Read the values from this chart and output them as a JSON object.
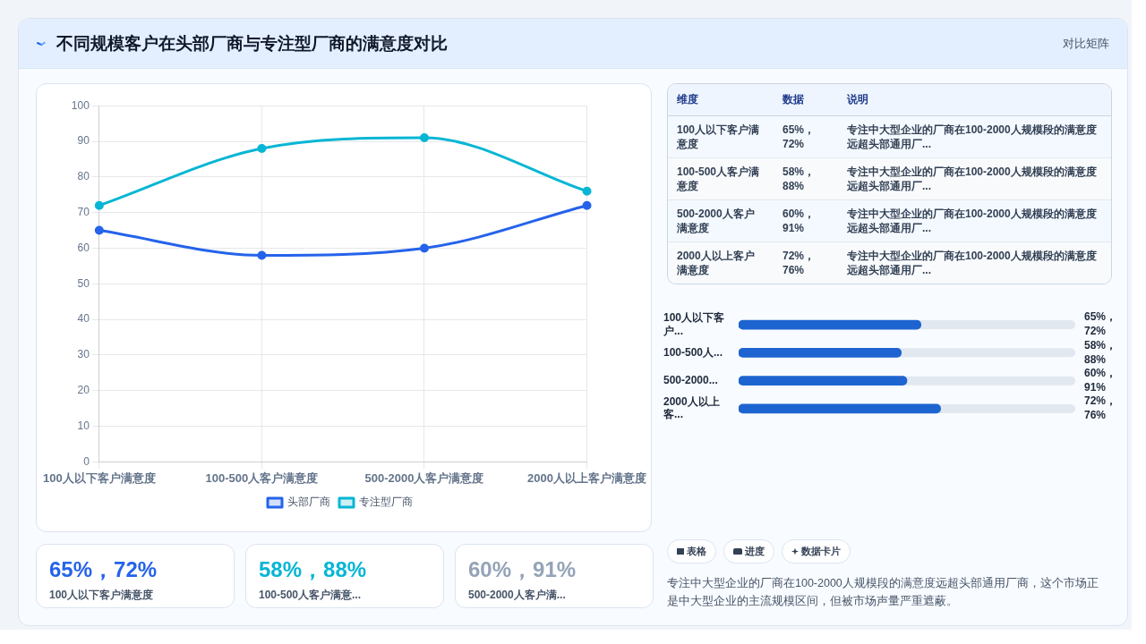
{
  "chart_data": [
    {
      "type": "other",
      "title": "不同规模客户在头部厂商与专注型厂商的满意度对比",
      "subtitle": "对比矩阵"
    },
    {
      "type": "line",
      "categories": [
        "100人以下客户满意度",
        "100-500人客户满意度",
        "500-2000人客户满意度",
        "2000人以上客户满意度"
      ],
      "series": [
        {
          "name": "头部厂商",
          "color": "#2563eb",
          "values": [
            65,
            58,
            60,
            72
          ]
        },
        {
          "name": "专注型厂商",
          "color": "#06b6d4",
          "values": [
            72,
            88,
            91,
            76
          ]
        }
      ],
      "ylim": [
        0,
        100
      ],
      "yticks": [
        0,
        10,
        20,
        30,
        40,
        50,
        60,
        70,
        80,
        90,
        100
      ],
      "grid": true,
      "legend": "bottom",
      "marker": "circle"
    },
    {
      "type": "other",
      "annotations": [
        "维度",
        "数据",
        "说明",
        "100人以下客户满意度",
        "65%，72%",
        "专注中大型企业的厂商在100-2000人规模段的满意度远超头部通用厂...",
        "100-500人客户满意度",
        "58%，88%",
        "专注中大型企业的厂商在100-2000人规模段的满意度远超头部通用厂...",
        "500-2000人客户满意度",
        "60%，91%",
        "专注中大型企业的厂商在100-2000人规模段的满意度远超头部通用厂...",
        "2000人以上客户满意度",
        "72%，76%",
        "专注中大型企业的厂商在100-2000人规模段的满意度远超头部通用厂..."
      ]
    },
    {
      "type": "bar",
      "orientation": "horizontal",
      "categories": [
        "100人以下客户...",
        "100-500人...",
        "500-2000...",
        "2000人以上客..."
      ],
      "values": [
        65,
        58,
        60,
        72
      ],
      "color": "#1d64d0",
      "xlim": [
        0,
        120
      ],
      "tick_labels": "y",
      "value_labels": [
        "65%，72%",
        "58%，88%",
        "60%，91%",
        "72%，76%"
      ]
    },
    {
      "type": "other",
      "annotations": [
        "65%，72%",
        "100人以下客户满意度",
        "58%，88%",
        "100-500人客户满意...",
        "60%，91%",
        "500-2000人客户满...",
        "表格",
        "进度",
        "数据卡片",
        "专注中大型企业的厂商在100-2000人规模段的满意度远超头部通用厂商，这个市场正是中大型企业的主流规模区间，但被市场声量严重遮蔽。"
      ]
    }
  ]
}
